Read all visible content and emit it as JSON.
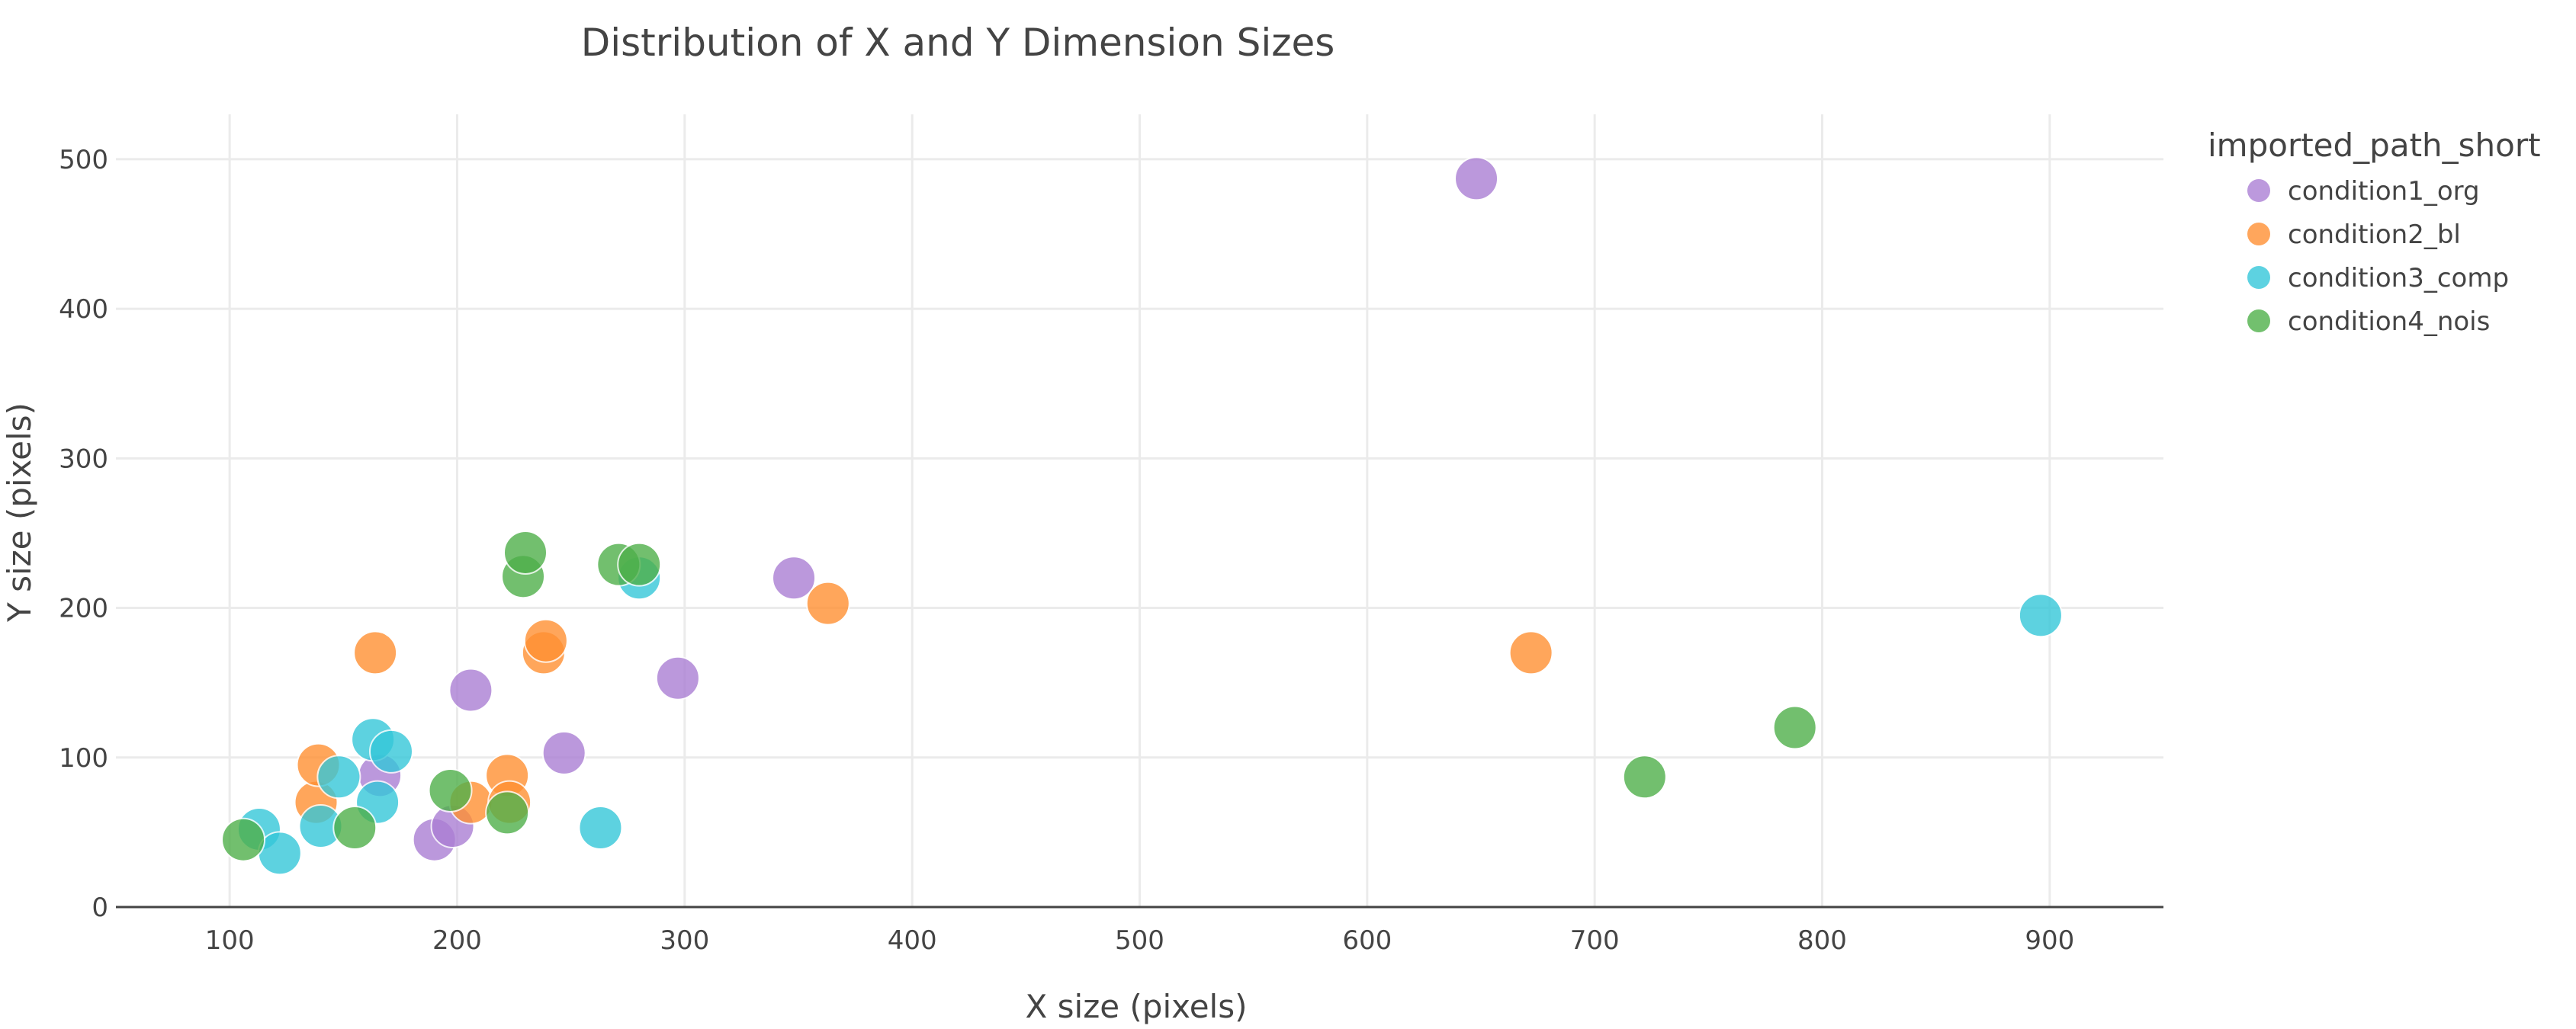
{
  "chart_data": {
    "type": "scatter",
    "title": "Distribution of X and Y Dimension Sizes",
    "xlabel": "X size (pixels)",
    "ylabel": "Y size (pixels)",
    "xlim": [
      50,
      950
    ],
    "ylim": [
      0,
      530
    ],
    "x_ticks": [
      100,
      200,
      300,
      400,
      500,
      600,
      700,
      800,
      900
    ],
    "y_ticks": [
      0,
      100,
      200,
      300,
      400,
      500
    ],
    "grid": true,
    "legend": {
      "title": "imported_path_short",
      "placement": "top-right"
    },
    "series": [
      {
        "name": "condition1_org",
        "color": "#ab7fd4",
        "points": [
          [
            190,
            45
          ],
          [
            198,
            54
          ],
          [
            166,
            88
          ],
          [
            206,
            145
          ],
          [
            247,
            103
          ],
          [
            297,
            153
          ],
          [
            348,
            220
          ],
          [
            648,
            487
          ]
        ]
      },
      {
        "name": "condition2_bl",
        "color": "#ff9033",
        "points": [
          [
            138,
            70
          ],
          [
            139,
            95
          ],
          [
            164,
            170
          ],
          [
            206,
            70
          ],
          [
            222,
            88
          ],
          [
            223,
            70
          ],
          [
            238,
            170
          ],
          [
            239,
            178
          ],
          [
            363,
            203
          ],
          [
            672,
            170
          ]
        ]
      },
      {
        "name": "condition3_comp",
        "color": "#35c7d9",
        "points": [
          [
            113,
            52
          ],
          [
            122,
            36
          ],
          [
            140,
            54
          ],
          [
            148,
            87
          ],
          [
            163,
            112
          ],
          [
            165,
            70
          ],
          [
            171,
            104
          ],
          [
            263,
            53
          ],
          [
            280,
            220
          ],
          [
            896,
            195
          ]
        ]
      },
      {
        "name": "condition4_nois",
        "color": "#4fb04a",
        "points": [
          [
            106,
            45
          ],
          [
            155,
            53
          ],
          [
            197,
            78
          ],
          [
            222,
            63
          ],
          [
            229,
            221
          ],
          [
            230,
            237
          ],
          [
            271,
            229
          ],
          [
            280,
            229
          ],
          [
            722,
            87
          ],
          [
            788,
            120
          ]
        ]
      }
    ]
  }
}
